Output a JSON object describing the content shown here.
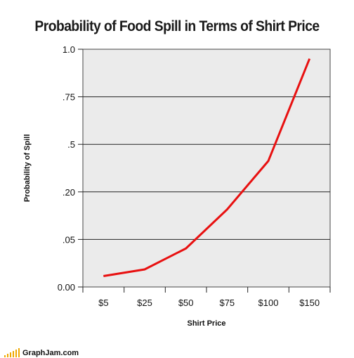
{
  "chart_data": {
    "type": "line",
    "title": "Probability of Food Spill in Terms of Shirt Price",
    "xlabel": "Shirt Price",
    "ylabel": "Probability of Spill",
    "categories": [
      "$5",
      "$25",
      "$50",
      "$75",
      "$100",
      "$150"
    ],
    "y_tick_labels": [
      "0.00",
      ".05",
      ".20",
      ".5",
      ".75",
      "1.0"
    ],
    "y_tick_values": [
      0,
      1,
      2,
      3,
      4,
      5
    ],
    "ylim": [
      0,
      5
    ],
    "grid": true,
    "legend": "none",
    "series": [
      {
        "values": [
          0.23,
          0.37,
          0.81,
          1.63,
          2.65,
          4.8
        ],
        "color": "#e81010"
      }
    ]
  },
  "plot_background": "#ebebeb",
  "brand": {
    "text": "GraphJam.com",
    "icon": "signal-bars-icon",
    "color": "#f0a800"
  }
}
